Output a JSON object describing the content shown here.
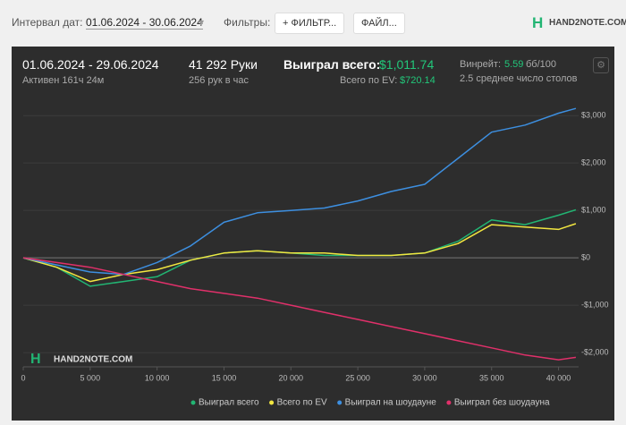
{
  "toolbar": {
    "date_label": "Интервал дат:",
    "date_range": "01.06.2024 - 30.06.2024",
    "filters_label": "Фильтры:",
    "filter_button": "ФИЛЬТР...",
    "file_button": "ФАЙЛ...",
    "logo": "HAND2NOTE.COM"
  },
  "stats": {
    "period": "01.06.2024 - 29.06.2024",
    "active": "Активен 161ч 24м",
    "hands": "41 292 Руки",
    "hands_per_hour": "256 рук в час",
    "won_label": "Выиграл всего:",
    "won_value": "$1,011.74",
    "ev_label": "Всего по EV:",
    "ev_value": "$720.14",
    "winrate_label": "Винрейт:",
    "winrate_value": "5.59",
    "winrate_unit": "бб/100",
    "tables": "2.5 среднее число столов"
  },
  "chart_data": {
    "type": "line",
    "watermark": "HAND2NOTE.COM",
    "x": [
      0,
      2500,
      5000,
      7500,
      10000,
      12500,
      15000,
      17500,
      20000,
      22500,
      25000,
      27500,
      30000,
      32500,
      35000,
      37500,
      40000,
      41292
    ],
    "series": [
      {
        "name": "Выиграл всего",
        "color": "#22b573",
        "values": [
          0,
          -200,
          -600,
          -500,
          -400,
          -50,
          100,
          150,
          100,
          50,
          50,
          50,
          100,
          350,
          800,
          700,
          900,
          1012
        ]
      },
      {
        "name": "Всего по EV",
        "color": "#f2e640",
        "values": [
          0,
          -200,
          -500,
          -350,
          -250,
          -50,
          100,
          150,
          100,
          100,
          50,
          50,
          100,
          300,
          700,
          650,
          600,
          720
        ]
      },
      {
        "name": "Выиграл на шоудауне",
        "color": "#3d8fe0",
        "values": [
          0,
          -150,
          -300,
          -350,
          -100,
          250,
          750,
          950,
          1000,
          1050,
          1200,
          1400,
          1550,
          2100,
          2650,
          2800,
          3050,
          3150
        ]
      },
      {
        "name": "Выиграл без шоудауна",
        "color": "#e0306a",
        "values": [
          0,
          -100,
          -200,
          -350,
          -500,
          -650,
          -750,
          -850,
          -1000,
          -1150,
          -1300,
          -1450,
          -1600,
          -1750,
          -1900,
          -2050,
          -2150,
          -2100
        ]
      }
    ],
    "xlim": [
      0,
      41500
    ],
    "ylim": [
      -2300,
      3400
    ],
    "xticks": [
      0,
      {
        "value": 5000,
        "label": "5 000"
      },
      {
        "value": 10000,
        "label": "10 000"
      },
      {
        "value": 15000,
        "label": "15 000"
      },
      {
        "value": 20000,
        "label": "20 000"
      },
      {
        "value": 25000,
        "label": "25 000"
      },
      {
        "value": 30000,
        "label": "30 000"
      },
      {
        "value": 35000,
        "label": "35 000"
      },
      {
        "value": 40000,
        "label": "40 000"
      }
    ],
    "yticks": [
      {
        "value": -2000,
        "label": "-$2,000"
      },
      {
        "value": -1000,
        "label": "-$1,000"
      },
      {
        "value": 0,
        "label": "$0"
      },
      {
        "value": 1000,
        "label": "$1,000"
      },
      {
        "value": 2000,
        "label": "$2,000"
      },
      {
        "value": 3000,
        "label": "$3,000"
      }
    ]
  }
}
